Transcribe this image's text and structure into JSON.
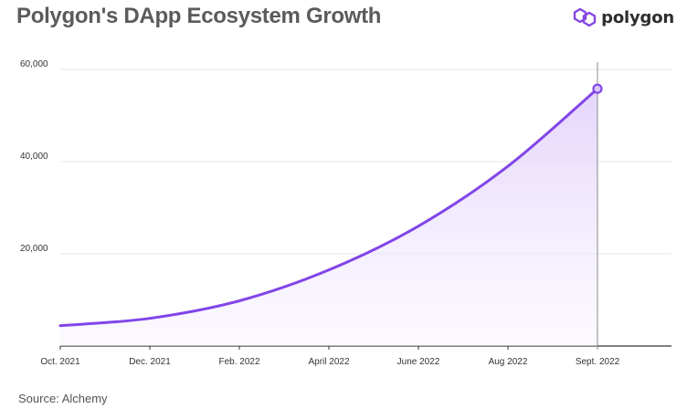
{
  "header": {
    "title": "Polygon's DApp Ecosystem Growth",
    "brand_name": "polygon",
    "logo_icon": "polygon-logo-icon"
  },
  "footer": {
    "source": "Source: Alchemy"
  },
  "colors": {
    "line": "#8245e8",
    "fill": "#ede4fc",
    "grid": "#e6e6e6",
    "axis": "#333333",
    "marker_fill": "#d9c6fa",
    "brand": "#8247e5"
  },
  "chart_data": {
    "type": "area",
    "title": "Polygon's DApp Ecosystem Growth",
    "xlabel": "",
    "ylabel": "",
    "x": [
      "Oct. 2021",
      "Dec. 2021",
      "Feb. 2022",
      "April 2022",
      "June 2022",
      "Aug 2022",
      "Sept. 2022"
    ],
    "x_ticks": [
      "Oct. 2021",
      "Dec. 2021",
      "Feb. 2022",
      "April 2022",
      "June 2022",
      "Aug 2022",
      "Sept. 2022"
    ],
    "y_ticks": [
      20000,
      40000,
      60000
    ],
    "y_tick_labels": [
      "20,000",
      "40,000",
      "60,000"
    ],
    "ylim": [
      0,
      60000
    ],
    "grid": true,
    "legend": "none",
    "highlight": "Sept. 2022",
    "series": [
      {
        "values": [
          4400,
          6000,
          9800,
          16500,
          26000,
          39000,
          55800
        ]
      }
    ]
  }
}
